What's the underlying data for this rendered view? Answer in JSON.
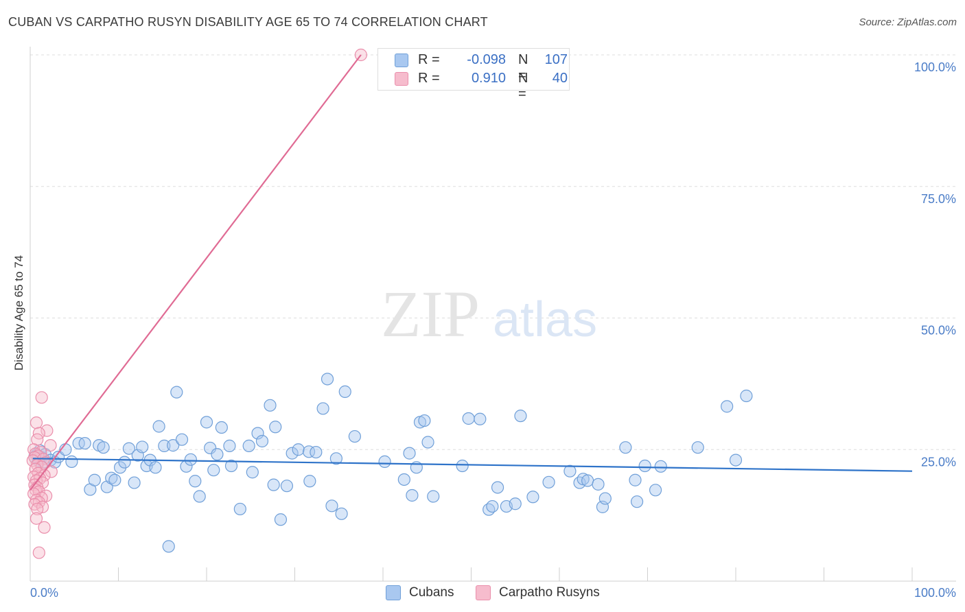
{
  "chart_data": {
    "type": "scatter",
    "title": "CUBAN VS CARPATHO RUSYN DISABILITY AGE 65 TO 74 CORRELATION CHART",
    "source": "Source: ZipAtlas.com",
    "ylabel": "Disability Age 65 to 74",
    "xlabel": "",
    "xlim": [
      0,
      100
    ],
    "ylim": [
      0,
      100
    ],
    "x_tick_labels": [
      "0.0%",
      "100.0%"
    ],
    "y_ticks": [
      25,
      50,
      75,
      100
    ],
    "y_tick_labels": [
      "25.0%",
      "50.0%",
      "75.0%",
      "100.0%"
    ],
    "watermark": {
      "part1": "ZIP",
      "part2": "atlas"
    },
    "legend": {
      "r_label": "R =",
      "n_label": "N =",
      "entries": [
        {
          "name": "Cubans",
          "r": "-0.098",
          "n": "107"
        },
        {
          "name": "Carpatho Rusyns",
          "r": "0.910",
          "n": "40"
        }
      ]
    },
    "colors": {
      "cubans_fill": "#a9c8f0",
      "cubans_stroke": "#6f9fd8",
      "cubans_line": "#2e73c9",
      "rusyn_fill": "#f6bccd",
      "rusyn_stroke": "#ea8eab",
      "rusyn_line": "#e06b94",
      "tick_label": "#4a7cc7",
      "grid": "#dddddd"
    },
    "series": [
      {
        "name": "Cubans",
        "trend": {
          "x": [
            0.3,
            100
          ],
          "y": [
            23.3,
            20.9
          ]
        },
        "points": [
          [
            0.5,
            23.6
          ],
          [
            0.7,
            24.0
          ],
          [
            0.9,
            23.2
          ],
          [
            1.0,
            22.8
          ],
          [
            1.1,
            24.8
          ],
          [
            1.3,
            23.5
          ],
          [
            1.5,
            22.6
          ],
          [
            1.7,
            24.1
          ],
          [
            2.3,
            23.0
          ],
          [
            2.8,
            22.6
          ],
          [
            3.2,
            23.6
          ],
          [
            4.0,
            25.0
          ],
          [
            4.7,
            22.7
          ],
          [
            5.5,
            26.2
          ],
          [
            6.2,
            26.2
          ],
          [
            6.8,
            17.4
          ],
          [
            7.3,
            19.2
          ],
          [
            7.8,
            25.8
          ],
          [
            8.3,
            25.4
          ],
          [
            8.7,
            17.9
          ],
          [
            9.2,
            19.6
          ],
          [
            9.6,
            19.2
          ],
          [
            10.2,
            21.6
          ],
          [
            10.7,
            22.6
          ],
          [
            11.2,
            25.2
          ],
          [
            11.8,
            18.7
          ],
          [
            12.2,
            23.9
          ],
          [
            12.7,
            25.5
          ],
          [
            13.2,
            21.9
          ],
          [
            13.6,
            23.0
          ],
          [
            14.2,
            21.6
          ],
          [
            14.6,
            29.4
          ],
          [
            15.2,
            25.7
          ],
          [
            15.7,
            6.6
          ],
          [
            16.2,
            25.8
          ],
          [
            16.6,
            35.9
          ],
          [
            17.2,
            26.9
          ],
          [
            17.7,
            21.8
          ],
          [
            18.2,
            23.1
          ],
          [
            18.7,
            19.0
          ],
          [
            19.2,
            16.1
          ],
          [
            20.0,
            30.2
          ],
          [
            20.4,
            25.3
          ],
          [
            20.8,
            21.1
          ],
          [
            21.2,
            24.1
          ],
          [
            21.7,
            29.2
          ],
          [
            22.6,
            25.7
          ],
          [
            22.8,
            21.9
          ],
          [
            23.8,
            13.7
          ],
          [
            24.8,
            25.7
          ],
          [
            25.2,
            20.7
          ],
          [
            25.8,
            28.1
          ],
          [
            26.3,
            26.6
          ],
          [
            27.2,
            33.4
          ],
          [
            27.6,
            18.3
          ],
          [
            27.8,
            29.3
          ],
          [
            28.4,
            11.7
          ],
          [
            29.1,
            18.1
          ],
          [
            29.7,
            24.3
          ],
          [
            30.4,
            25.0
          ],
          [
            31.6,
            24.6
          ],
          [
            31.7,
            19.0
          ],
          [
            32.4,
            24.5
          ],
          [
            33.2,
            32.8
          ],
          [
            33.7,
            38.4
          ],
          [
            34.2,
            14.3
          ],
          [
            34.7,
            23.3
          ],
          [
            35.3,
            12.8
          ],
          [
            35.7,
            36.0
          ],
          [
            36.8,
            27.5
          ],
          [
            40.2,
            22.7
          ],
          [
            42.4,
            19.3
          ],
          [
            43.0,
            24.3
          ],
          [
            43.3,
            16.3
          ],
          [
            43.8,
            21.6
          ],
          [
            44.2,
            30.2
          ],
          [
            44.7,
            30.5
          ],
          [
            45.1,
            26.4
          ],
          [
            45.7,
            16.1
          ],
          [
            49.0,
            21.9
          ],
          [
            49.7,
            30.9
          ],
          [
            51.0,
            30.8
          ],
          [
            52.0,
            13.6
          ],
          [
            52.4,
            14.2
          ],
          [
            53.0,
            17.8
          ],
          [
            54.0,
            14.2
          ],
          [
            55.0,
            14.7
          ],
          [
            55.6,
            31.4
          ],
          [
            57.0,
            16.0
          ],
          [
            58.8,
            18.8
          ],
          [
            61.2,
            20.9
          ],
          [
            62.3,
            18.7
          ],
          [
            62.7,
            19.4
          ],
          [
            63.2,
            19.1
          ],
          [
            64.4,
            18.4
          ],
          [
            64.9,
            14.1
          ],
          [
            65.2,
            15.7
          ],
          [
            67.5,
            25.4
          ],
          [
            68.6,
            19.2
          ],
          [
            68.8,
            15.1
          ],
          [
            69.7,
            21.9
          ],
          [
            70.9,
            17.3
          ],
          [
            71.5,
            21.8
          ],
          [
            75.7,
            25.4
          ],
          [
            79.0,
            33.2
          ],
          [
            80.0,
            23.0
          ],
          [
            81.2,
            35.2
          ]
        ]
      },
      {
        "name": "Carpatho Rusyns",
        "trend": {
          "x": [
            0.0,
            37.5
          ],
          "y": [
            17.3,
            100
          ]
        },
        "points": [
          [
            37.5,
            100
          ],
          [
            1.3,
            34.9
          ],
          [
            0.7,
            30.1
          ],
          [
            1.9,
            28.6
          ],
          [
            1.0,
            28.1
          ],
          [
            0.8,
            26.9
          ],
          [
            2.3,
            25.8
          ],
          [
            0.4,
            25.0
          ],
          [
            1.2,
            24.5
          ],
          [
            0.6,
            24.2
          ],
          [
            0.9,
            23.8
          ],
          [
            0.5,
            23.5
          ],
          [
            1.5,
            23.2
          ],
          [
            0.3,
            22.9
          ],
          [
            1.7,
            22.5
          ],
          [
            0.8,
            22.1
          ],
          [
            1.3,
            21.7
          ],
          [
            0.6,
            21.3
          ],
          [
            2.4,
            20.8
          ],
          [
            0.9,
            20.5
          ],
          [
            1.6,
            20.1
          ],
          [
            0.4,
            19.8
          ],
          [
            1.1,
            19.5
          ],
          [
            0.7,
            19.1
          ],
          [
            1.4,
            18.7
          ],
          [
            0.5,
            18.3
          ],
          [
            0.8,
            17.8
          ],
          [
            0.6,
            17.4
          ],
          [
            1.0,
            17.0
          ],
          [
            0.4,
            16.6
          ],
          [
            1.8,
            16.2
          ],
          [
            1.3,
            15.8
          ],
          [
            0.7,
            15.4
          ],
          [
            1.0,
            15.0
          ],
          [
            0.5,
            14.6
          ],
          [
            1.4,
            14.1
          ],
          [
            0.8,
            13.7
          ],
          [
            0.7,
            11.9
          ],
          [
            1.6,
            10.2
          ],
          [
            1.0,
            5.4
          ]
        ]
      }
    ]
  }
}
